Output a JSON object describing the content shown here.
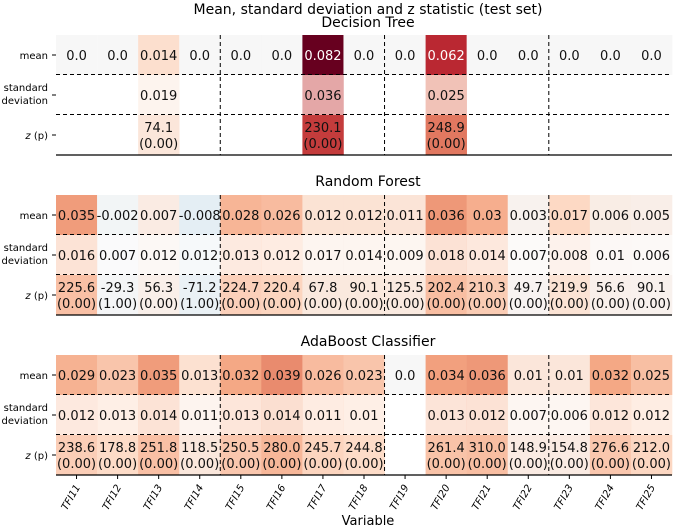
{
  "chart_data": {
    "type": "heatmap",
    "title": "Mean, standard deviation and z statistic (test set)",
    "xlabel": "Variable",
    "columns": [
      "TFI11",
      "TFI12",
      "TFI13",
      "TFI14",
      "TFI15",
      "TFI16",
      "TFI17",
      "TFI18",
      "TFI19",
      "TFI20",
      "TFI21",
      "TFI22",
      "TFI23",
      "TFI24",
      "TFI25"
    ],
    "row_labels": {
      "mean": "mean",
      "sd_line1": "standard",
      "sd_line2": "deviation",
      "z_italic": "z",
      "z_rest": " (p)"
    },
    "group_separators_after_column": [
      "TFI14",
      "TFI18",
      "TFI22"
    ],
    "panels": [
      {
        "title": "Decision Tree",
        "mean": [
          0.0,
          0.0,
          0.014,
          0.0,
          0.0,
          0.0,
          0.082,
          0.0,
          0.0,
          0.062,
          0.0,
          0.0,
          0.0,
          0.0,
          0.0
        ],
        "mean_labels": [
          "0.0",
          "0.0",
          "0.014",
          "0.0",
          "0.0",
          "0.0",
          "0.082",
          "0.0",
          "0.0",
          "0.062",
          "0.0",
          "0.0",
          "0.0",
          "0.0",
          "0.0"
        ],
        "sd_labels": [
          "",
          "",
          "0.019",
          "",
          "",
          "",
          "0.036",
          "",
          "",
          "0.025",
          "",
          "",
          "",
          "",
          ""
        ],
        "z_labels": [
          "",
          "",
          "74.1",
          "",
          "",
          "",
          "230.1",
          "",
          "",
          "248.9",
          "",
          "",
          "",
          "",
          ""
        ],
        "p_labels": [
          "",
          "",
          "(0.00)",
          "",
          "",
          "",
          "(0.00)",
          "",
          "",
          "(0.00)",
          "",
          "",
          "",
          "",
          ""
        ]
      },
      {
        "title": "Random Forest",
        "mean": [
          0.035,
          -0.002,
          0.007,
          -0.008,
          0.028,
          0.026,
          0.012,
          0.012,
          0.011,
          0.036,
          0.03,
          0.003,
          0.017,
          0.006,
          0.005
        ],
        "mean_labels": [
          "0.035",
          "-0.002",
          "0.007",
          "-0.008",
          "0.028",
          "0.026",
          "0.012",
          "0.012",
          "0.011",
          "0.036",
          "0.03",
          "0.003",
          "0.017",
          "0.006",
          "0.005"
        ],
        "sd_labels": [
          "0.016",
          "0.007",
          "0.012",
          "0.012",
          "0.013",
          "0.012",
          "0.017",
          "0.014",
          "0.009",
          "0.018",
          "0.014",
          "0.007",
          "0.008",
          "0.01",
          "0.006"
        ],
        "z_labels": [
          "225.6",
          "-29.3",
          "56.3",
          "-71.2",
          "224.7",
          "220.4",
          "67.8",
          "90.1",
          "125.5",
          "202.4",
          "210.3",
          "49.7",
          "219.9",
          "56.6",
          "90.1"
        ],
        "p_labels": [
          "(0.00)",
          "(1.00)",
          "(0.00)",
          "(1.00)",
          "(0.00)",
          "(0.00)",
          "(0.00)",
          "(0.00)",
          "(0.00)",
          "(0.00)",
          "(0.00)",
          "(0.00)",
          "(0.00)",
          "(0.00)",
          "(0.00)"
        ]
      },
      {
        "title": "AdaBoost Classifier",
        "mean": [
          0.029,
          0.023,
          0.035,
          0.013,
          0.032,
          0.039,
          0.026,
          0.023,
          0.0,
          0.034,
          0.036,
          0.01,
          0.01,
          0.032,
          0.025
        ],
        "mean_labels": [
          "0.029",
          "0.023",
          "0.035",
          "0.013",
          "0.032",
          "0.039",
          "0.026",
          "0.023",
          "0.0",
          "0.034",
          "0.036",
          "0.01",
          "0.01",
          "0.032",
          "0.025"
        ],
        "sd_labels": [
          "0.012",
          "0.013",
          "0.014",
          "0.011",
          "0.013",
          "0.014",
          "0.011",
          "0.01",
          "",
          "0.013",
          "0.012",
          "0.007",
          "0.006",
          "0.012",
          "0.012"
        ],
        "z_labels": [
          "238.6",
          "178.8",
          "251.8",
          "118.5",
          "250.5",
          "280.0",
          "245.7",
          "244.8",
          "",
          "261.4",
          "310.0",
          "148.9",
          "154.8",
          "276.6",
          "212.0"
        ],
        "p_labels": [
          "(0.00)",
          "(0.00)",
          "(0.00)",
          "(0.00)",
          "(0.00)",
          "(0.00)",
          "(0.00)",
          "(0.00)",
          "",
          "(0.00)",
          "(0.00)",
          "(0.00)",
          "(0.00)",
          "(0.00)",
          "(0.00)"
        ]
      }
    ],
    "colormap": "RdBu_r",
    "colors": {
      "dark_red": "#67001f",
      "red": "#b2182b",
      "mid_red": "#d6604d",
      "salmon": "#f4a582",
      "light_salmon": "#fddbc7",
      "near_white": "#f7f7f7",
      "light_blue": "#d1e5f0",
      "blue": "#92c5de"
    }
  }
}
